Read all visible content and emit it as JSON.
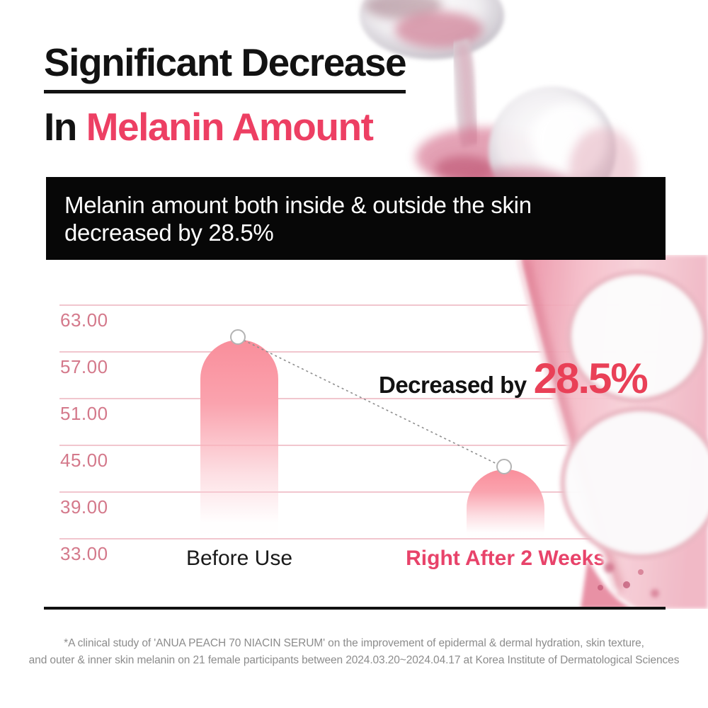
{
  "title": {
    "line1": "Significant Decrease",
    "line2_prefix": "In ",
    "line2_highlight": "Melanin Amount"
  },
  "banner": {
    "line1": "Melanin amount both inside & outside the skin",
    "line2": "decreased by 28.5%"
  },
  "chart_data": {
    "type": "bar",
    "title": "Melanin amount before vs after use",
    "categories": [
      "Before Use",
      "Right After 2 Weeks"
    ],
    "values": [
      58.5,
      41.8
    ],
    "ytick_labels": [
      "63.00",
      "57.00",
      "51.00",
      "45.00",
      "39.00",
      "33.00"
    ],
    "ylim": [
      33,
      63
    ],
    "grid": true,
    "legend_position": "none",
    "annotation_prefix": "Decreased by ",
    "annotation_value": "28.5%",
    "category_colors": [
      "#1A1A1A",
      "#E8436A"
    ],
    "bar_gradient_top": "#F98E9B",
    "bar_gradient_bottom": "#FFFFFF"
  },
  "footnote": {
    "line1": "*A clinical study of 'ANUA PEACH 70 NIACIN SERUM' on the improvement of epidermal & dermal hydration, skin texture,",
    "line2": "and outer & inner skin melanin on 21 female participants between 2024.03.20~2024.04.17 at Korea Institute of Dermatological Sciences"
  },
  "colors": {
    "accent_pink": "#ED3F63",
    "ytick_text": "#D4798B",
    "grid_line": "#F1C6CE",
    "banner_bg": "#070707",
    "connector_gray": "#8E8E8E"
  },
  "decor_icons": {
    "top": "serum-droplet-photo",
    "right": "serum-dropper-photo"
  }
}
